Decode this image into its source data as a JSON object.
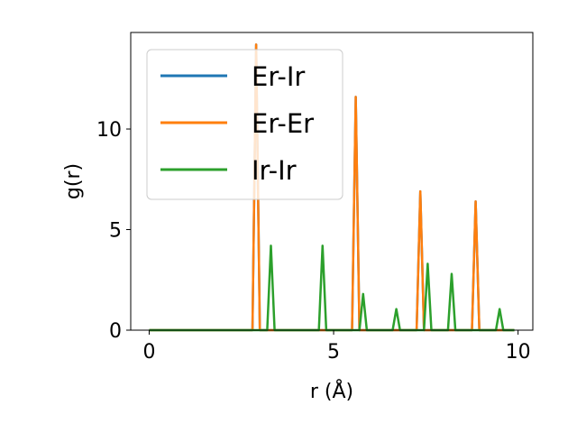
{
  "chart_data": {
    "type": "line",
    "title": "",
    "xlabel": "r (Å)",
    "ylabel": "g(r)",
    "xlim": [
      -0.5,
      10.4
    ],
    "ylim": [
      0,
      14.8
    ],
    "x_ticks": [
      0,
      5,
      10
    ],
    "x_tick_labels": [
      "0",
      "5",
      "10"
    ],
    "y_ticks": [
      0,
      5,
      10
    ],
    "y_tick_labels": [
      "0",
      "5",
      "10"
    ],
    "grid": false,
    "legend_position": "top-left",
    "series": [
      {
        "name": "Er-Ir",
        "color": "#1f77b4",
        "x": [
          0,
          2.8,
          2.9,
          3.0,
          5.5,
          5.6,
          5.7,
          7.25,
          7.35,
          7.45,
          8.75,
          8.85,
          8.95,
          9.9
        ],
        "y": [
          0,
          0,
          14.2,
          0,
          0,
          11.6,
          0,
          0,
          6.9,
          0,
          0,
          6.4,
          0,
          0
        ]
      },
      {
        "name": "Er-Er",
        "color": "#ff7f0e",
        "x": [
          0,
          2.8,
          2.9,
          3.0,
          5.5,
          5.6,
          5.7,
          7.25,
          7.35,
          7.45,
          8.75,
          8.85,
          8.95,
          9.9
        ],
        "y": [
          0,
          0,
          14.2,
          0,
          0,
          11.6,
          0,
          0,
          6.9,
          0,
          0,
          6.4,
          0,
          0
        ]
      },
      {
        "name": "Ir-Ir",
        "color": "#2ca02c",
        "x": [
          0,
          3.2,
          3.3,
          3.4,
          4.6,
          4.7,
          4.8,
          5.7,
          5.8,
          5.9,
          6.6,
          6.7,
          6.8,
          7.45,
          7.55,
          7.65,
          8.1,
          8.2,
          8.3,
          9.4,
          9.5,
          9.6,
          9.9
        ],
        "y": [
          0,
          0,
          4.2,
          0,
          0,
          4.2,
          0,
          0,
          1.8,
          0,
          0,
          1.05,
          0,
          0,
          3.3,
          0,
          0,
          2.8,
          0,
          0,
          1.05,
          0,
          0
        ]
      }
    ]
  }
}
